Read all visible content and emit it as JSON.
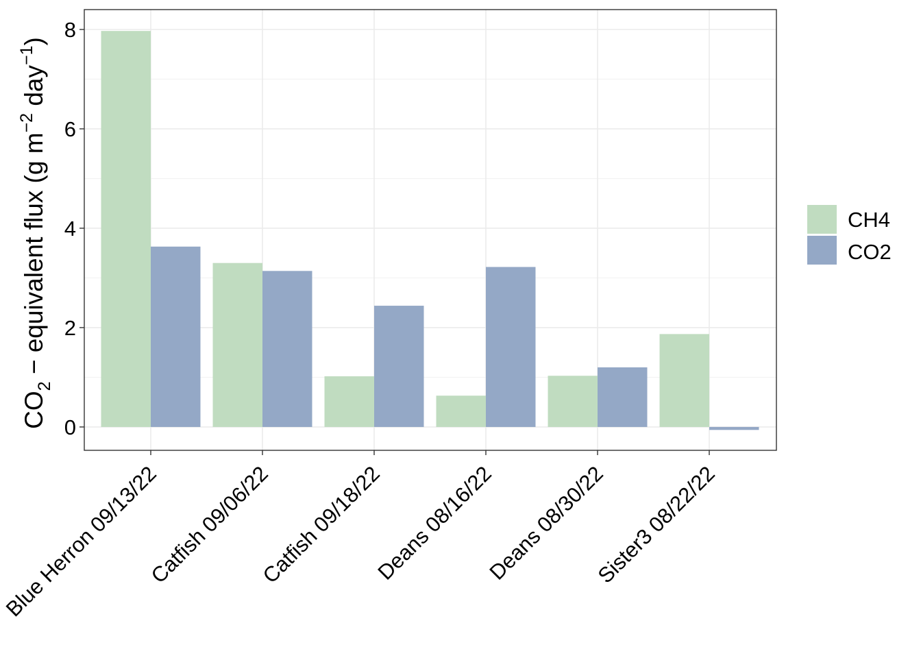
{
  "chart_data": {
    "type": "bar",
    "title": "",
    "xlabel": "",
    "ylabel": {
      "prefix": "CO",
      "sub": "2",
      "middle": " − equivalent flux (g m",
      "sup1": "−2",
      "middle2": " day",
      "sup2": "−1",
      "suffix": ")"
    },
    "categories": [
      "Blue Herron 09/13/22",
      "Catfish 09/06/22",
      "Catfish 09/18/22",
      "Deans 08/16/22",
      "Deans 08/30/22",
      "Sister3 08/22/22"
    ],
    "series": [
      {
        "name": "CH4",
        "color": "#c0dcc0",
        "values": [
          7.97,
          3.3,
          1.02,
          0.63,
          1.03,
          1.87
        ]
      },
      {
        "name": "CO2",
        "color": "#94a8c6",
        "values": [
          3.63,
          3.14,
          2.44,
          3.22,
          1.2,
          -0.06
        ]
      }
    ],
    "ylim": [
      -0.47,
      8.4
    ],
    "yticks": [
      "0",
      "2",
      "4",
      "6",
      "8"
    ],
    "grid": true,
    "legend_position": "right"
  }
}
